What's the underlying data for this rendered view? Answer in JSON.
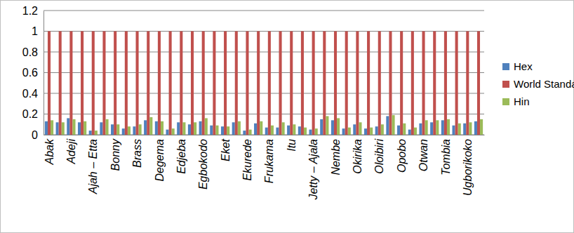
{
  "chart_data": {
    "type": "bar",
    "categories": [
      "Abak",
      null,
      "Adeji",
      null,
      "Ajah – Etta",
      null,
      "Bonny",
      null,
      "Brass",
      null,
      "Degema",
      null,
      "Edjeba",
      null,
      "Egbokodo",
      null,
      "Eket",
      null,
      "Ekurede",
      null,
      "Frukama",
      null,
      "Itu",
      null,
      "Jetty – Ajala",
      null,
      "Nembe",
      null,
      "Okirika",
      null,
      "Oloibiri",
      null,
      "Opobo",
      null,
      "Otwan",
      null,
      "Tombia",
      null,
      "Ugborikoko",
      null
    ],
    "series": [
      {
        "name": "Hex",
        "color": "#4f81bd",
        "values": [
          0.13,
          0.12,
          0.16,
          0.12,
          0.04,
          0.12,
          0.1,
          0.06,
          0.08,
          0.14,
          0.13,
          0.05,
          0.12,
          0.1,
          0.13,
          0.09,
          0.08,
          0.12,
          0.04,
          0.11,
          0.07,
          0.07,
          0.09,
          0.08,
          0.05,
          0.15,
          0.14,
          0.06,
          0.1,
          0.06,
          0.08,
          0.18,
          0.09,
          0.05,
          0.11,
          0.12,
          0.14,
          0.09,
          0.11,
          0.13
        ]
      },
      {
        "name": "World Standard Values",
        "color": "#c0504d",
        "values": [
          1,
          1,
          1,
          1,
          1,
          1,
          1,
          1,
          1,
          1,
          1,
          1,
          1,
          1,
          1,
          1,
          1,
          1,
          1,
          1,
          1,
          1,
          1,
          1,
          1,
          1,
          1,
          1,
          1,
          1,
          1,
          1,
          1,
          1,
          1,
          1,
          1,
          1,
          1,
          1
        ]
      },
      {
        "name": "Hin",
        "color": "#9bbb59",
        "values": [
          0.14,
          0.12,
          0.15,
          0.13,
          0.04,
          0.15,
          0.1,
          0.08,
          0.1,
          0.17,
          0.13,
          0.06,
          0.12,
          0.12,
          0.16,
          0.09,
          0.08,
          0.13,
          0.05,
          0.13,
          0.09,
          0.12,
          0.1,
          0.07,
          0.06,
          0.18,
          0.16,
          0.07,
          0.12,
          0.07,
          0.1,
          0.19,
          0.11,
          0.07,
          0.14,
          0.14,
          0.15,
          0.11,
          0.12,
          0.15
        ]
      }
    ],
    "ylim": [
      0,
      1.2
    ],
    "yticks": [
      0,
      0.2,
      0.4,
      0.6,
      0.8,
      1,
      1.2
    ],
    "grid": true,
    "legend": "right"
  }
}
